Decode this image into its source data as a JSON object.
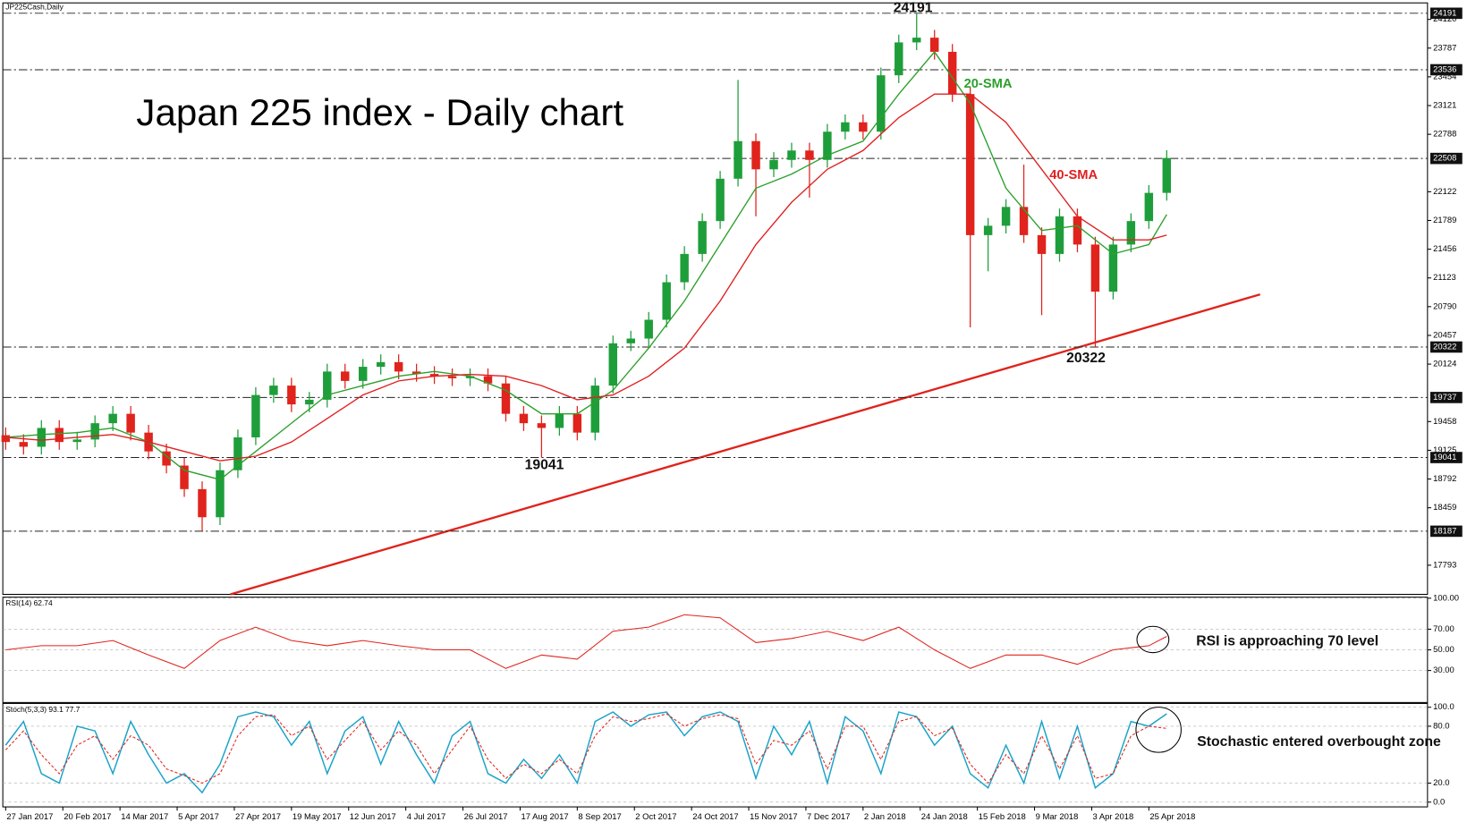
{
  "symbol": "JP225Cash,Daily",
  "chart_data": [
    {
      "type": "candlestick",
      "title": "Japan 225 index - Daily chart",
      "x": [
        0,
        5,
        10,
        15,
        20,
        25,
        30,
        35,
        40,
        45,
        50,
        55,
        60,
        65,
        70,
        75,
        80,
        85,
        90,
        95,
        100,
        105,
        110,
        115,
        120,
        125,
        130,
        135,
        140,
        145,
        150,
        155,
        160,
        165,
        170,
        175,
        180,
        185,
        190,
        195,
        200,
        205,
        210,
        215,
        220,
        225,
        230,
        235,
        240,
        245,
        250,
        255,
        260,
        265,
        270,
        275,
        280,
        285,
        290,
        295,
        300,
        305,
        310,
        315,
        320,
        325
      ],
      "open": [
        19300,
        19221,
        19166,
        19384,
        19221,
        19250,
        19439,
        19548,
        19330,
        19112,
        18948,
        18675,
        18349,
        18894,
        19275,
        19766,
        19875,
        19657,
        19711,
        20038,
        19929,
        20093,
        20147,
        20038,
        20010,
        19984,
        19960,
        19984,
        19900,
        19548,
        19439,
        19384,
        19548,
        19330,
        19875,
        20365,
        20420,
        20638,
        21073,
        21401,
        21782,
        22273,
        22709,
        22382,
        22491,
        22600,
        22491,
        22818,
        22927,
        22818,
        23472,
        23853,
        23908,
        23744,
        23254,
        21619,
        21728,
        21946,
        21619,
        21401,
        21837,
        21510,
        20964,
        21510,
        21782,
        22109
      ],
      "high": [
        19390,
        19311,
        19474,
        19474,
        19340,
        19529,
        19638,
        19638,
        19420,
        19202,
        19038,
        18765,
        18984,
        19365,
        19856,
        19965,
        19965,
        19801,
        20128,
        20128,
        20183,
        20237,
        20237,
        20128,
        20100,
        20074,
        20074,
        20074,
        19990,
        19638,
        19529,
        19638,
        19638,
        19965,
        20455,
        20510,
        20728,
        21163,
        21491,
        21872,
        22363,
        23418,
        22799,
        22581,
        22690,
        22690,
        22908,
        23017,
        23017,
        23562,
        23943,
        24191,
        23998,
        23834,
        23344,
        21818,
        22036,
        22436,
        21709,
        21927,
        21927,
        21600,
        21600,
        21872,
        22199,
        22603
      ],
      "low": [
        19131,
        19076,
        19076,
        19131,
        19131,
        19160,
        19349,
        19240,
        19022,
        18858,
        18585,
        18187,
        18259,
        18804,
        19185,
        19676,
        19567,
        19567,
        19621,
        19839,
        19839,
        20003,
        19948,
        19920,
        19894,
        19870,
        19870,
        19810,
        19458,
        19349,
        19041,
        19294,
        19240,
        19240,
        19785,
        20275,
        20330,
        20548,
        20983,
        21311,
        21692,
        22183,
        21837,
        22292,
        22401,
        22054,
        22401,
        22728,
        22728,
        22728,
        23382,
        23763,
        23654,
        23164,
        20550,
        21200,
        21638,
        21529,
        20692,
        21311,
        21420,
        20322,
        20874,
        21420,
        21692,
        22019
      ],
      "close": [
        19221,
        19166,
        19384,
        19221,
        19250,
        19439,
        19548,
        19330,
        19112,
        18948,
        18675,
        18349,
        18894,
        19275,
        19766,
        19875,
        19657,
        19711,
        20038,
        19929,
        20093,
        20147,
        20038,
        20010,
        19984,
        19960,
        19984,
        19900,
        19548,
        19439,
        19384,
        19548,
        19330,
        19875,
        20365,
        20420,
        20638,
        21073,
        21401,
        21782,
        22273,
        22709,
        22382,
        22491,
        22600,
        22491,
        22818,
        22927,
        22818,
        23472,
        23853,
        23908,
        23744,
        23254,
        21619,
        21728,
        21946,
        21619,
        21401,
        21837,
        21510,
        20964,
        21510,
        21782,
        22109,
        22513
      ],
      "up_color": "#1e9e3a",
      "down_color": "#e0231c",
      "series": [
        {
          "name": "20-SMA",
          "color": "#2ca02c",
          "x": [
            0,
            10,
            20,
            30,
            40,
            50,
            60,
            70,
            80,
            90,
            100,
            110,
            120,
            130,
            140,
            150,
            160,
            170,
            180,
            190,
            200,
            210,
            220,
            230,
            240,
            250,
            260,
            270,
            280,
            290,
            300,
            310,
            320,
            325
          ],
          "values": [
            19275,
            19308,
            19330,
            19384,
            19221,
            18894,
            18785,
            19112,
            19439,
            19766,
            19875,
            19984,
            20038,
            19984,
            19820,
            19548,
            19548,
            19820,
            20310,
            20856,
            21510,
            22163,
            22327,
            22545,
            22709,
            23254,
            23744,
            23145,
            22163,
            21673,
            21728,
            21401,
            21510,
            21858
          ]
        },
        {
          "name": "40-SMA",
          "color": "#e02020",
          "x": [
            0,
            10,
            20,
            30,
            40,
            50,
            60,
            70,
            80,
            90,
            100,
            110,
            120,
            130,
            140,
            150,
            160,
            170,
            180,
            190,
            200,
            210,
            220,
            230,
            240,
            250,
            260,
            270,
            280,
            290,
            300,
            310,
            320,
            325
          ],
          "values": [
            19275,
            19242,
            19275,
            19308,
            19221,
            19112,
            19003,
            19057,
            19221,
            19493,
            19766,
            19929,
            19984,
            20005,
            19984,
            19875,
            19711,
            19766,
            19984,
            20310,
            20856,
            21510,
            22000,
            22382,
            22600,
            22981,
            23254,
            23254,
            22927,
            22382,
            21837,
            21564,
            21564,
            21619
          ]
        }
      ],
      "levels": [
        24191,
        23536,
        22508,
        20322,
        19737,
        19041,
        18187
      ],
      "annotations": [
        "24191",
        "19041",
        "20322"
      ],
      "xlim": [
        -0.8,
        398
      ],
      "xticks": [
        {
          "value": 0,
          "label": "27 Jan 2017"
        },
        {
          "value": 16,
          "label": "20 Feb 2017"
        },
        {
          "value": 32,
          "label": "14 Mar 2017"
        },
        {
          "value": 48,
          "label": "5 Apr 2017"
        },
        {
          "value": 64,
          "label": "27 Apr 2017"
        },
        {
          "value": 80,
          "label": "19 May 2017"
        },
        {
          "value": 96,
          "label": "12 Jun 2017"
        },
        {
          "value": 112,
          "label": "4 Jul 2017"
        },
        {
          "value": 128,
          "label": "26 Jul 2017"
        },
        {
          "value": 144,
          "label": "17 Aug 2017"
        },
        {
          "value": 160,
          "label": "8 Sep 2017"
        },
        {
          "value": 176,
          "label": "2 Oct 2017"
        },
        {
          "value": 192,
          "label": "24 Oct 2017"
        },
        {
          "value": 208,
          "label": "15 Nov 2017"
        },
        {
          "value": 224,
          "label": "7 Dec 2017"
        },
        {
          "value": 240,
          "label": "2 Jan 2018"
        },
        {
          "value": 256,
          "label": "24 Jan 2018"
        },
        {
          "value": 272,
          "label": "15 Feb 2018"
        },
        {
          "value": 288,
          "label": "9 Mar 2018"
        },
        {
          "value": 304,
          "label": "3 Apr 2018"
        },
        {
          "value": 320,
          "label": "25 Apr 2018"
        }
      ],
      "ylim": [
        17455,
        24311
      ],
      "yticks": [
        17793,
        18459,
        18792,
        19125,
        19458,
        20124,
        20457,
        20790,
        21123,
        21456,
        21789,
        22122,
        22788,
        23121,
        23454,
        23787,
        24120
      ]
    },
    {
      "type": "line",
      "title": "RSI(14) 62.74",
      "annotation": "RSI is approaching 70 level",
      "color": "#e0231c",
      "x": [
        0,
        10,
        20,
        30,
        40,
        50,
        60,
        70,
        80,
        90,
        100,
        110,
        120,
        130,
        140,
        150,
        160,
        170,
        180,
        190,
        200,
        210,
        220,
        230,
        240,
        250,
        260,
        270,
        280,
        290,
        300,
        310,
        320,
        325
      ],
      "values": [
        50,
        54,
        54,
        59,
        45,
        32,
        59,
        72,
        59,
        54,
        59,
        54,
        50,
        50,
        32,
        45,
        41,
        68,
        72,
        84,
        81,
        57,
        61,
        68,
        59,
        72,
        50,
        32,
        45,
        45,
        36,
        50,
        54,
        63
      ],
      "xlim": [
        -0.8,
        398
      ],
      "ylim": [
        -1,
        101
      ],
      "yticks": [
        {
          "value": 100,
          "label": "100.00"
        },
        {
          "value": 70,
          "label": "70.00"
        },
        {
          "value": 50,
          "label": "50.00"
        },
        {
          "value": 30,
          "label": "30.00"
        }
      ]
    },
    {
      "type": "line",
      "title": "Stoch(5,3,3) 93.1 77.7",
      "annotation": "Stochastic entered overbought zone",
      "x": [
        0,
        5,
        10,
        15,
        20,
        25,
        30,
        35,
        40,
        45,
        50,
        55,
        60,
        65,
        70,
        75,
        80,
        85,
        90,
        95,
        100,
        105,
        110,
        115,
        120,
        125,
        130,
        135,
        140,
        145,
        150,
        155,
        160,
        165,
        170,
        175,
        180,
        185,
        190,
        195,
        200,
        205,
        210,
        215,
        220,
        225,
        230,
        235,
        240,
        245,
        250,
        255,
        260,
        265,
        270,
        275,
        280,
        285,
        290,
        295,
        300,
        305,
        310,
        315,
        320,
        325
      ],
      "series": [
        {
          "color": "#1aa3c8",
          "values": [
            60,
            85,
            30,
            20,
            80,
            75,
            30,
            85,
            50,
            20,
            30,
            10,
            40,
            90,
            95,
            90,
            60,
            85,
            30,
            75,
            90,
            40,
            85,
            50,
            20,
            70,
            85,
            30,
            20,
            45,
            25,
            50,
            20,
            85,
            95,
            80,
            92,
            95,
            70,
            90,
            95,
            85,
            25,
            80,
            50,
            85,
            20,
            90,
            75,
            30,
            95,
            90,
            60,
            80,
            30,
            15,
            60,
            20,
            85,
            25,
            80,
            15,
            30,
            85,
            80,
            93.1
          ]
        },
        {
          "color": "#e0231c",
          "dashed": true,
          "values": [
            55,
            75,
            50,
            30,
            60,
            70,
            45,
            70,
            60,
            35,
            28,
            20,
            30,
            70,
            90,
            92,
            70,
            80,
            45,
            65,
            85,
            55,
            75,
            60,
            30,
            55,
            80,
            45,
            25,
            40,
            30,
            45,
            30,
            70,
            90,
            85,
            88,
            93,
            80,
            88,
            92,
            88,
            40,
            65,
            60,
            75,
            35,
            80,
            80,
            45,
            85,
            90,
            70,
            78,
            40,
            20,
            50,
            30,
            70,
            35,
            70,
            25,
            30,
            70,
            80,
            77.7
          ]
        }
      ],
      "xlim": [
        -0.8,
        398
      ],
      "ylim": [
        -5,
        104
      ],
      "yticks": [
        {
          "value": 100,
          "label": "100.0"
        },
        {
          "value": 80,
          "label": "80.0"
        },
        {
          "value": 20,
          "label": "20.0"
        },
        {
          "value": 0,
          "label": "0.0"
        }
      ]
    }
  ]
}
